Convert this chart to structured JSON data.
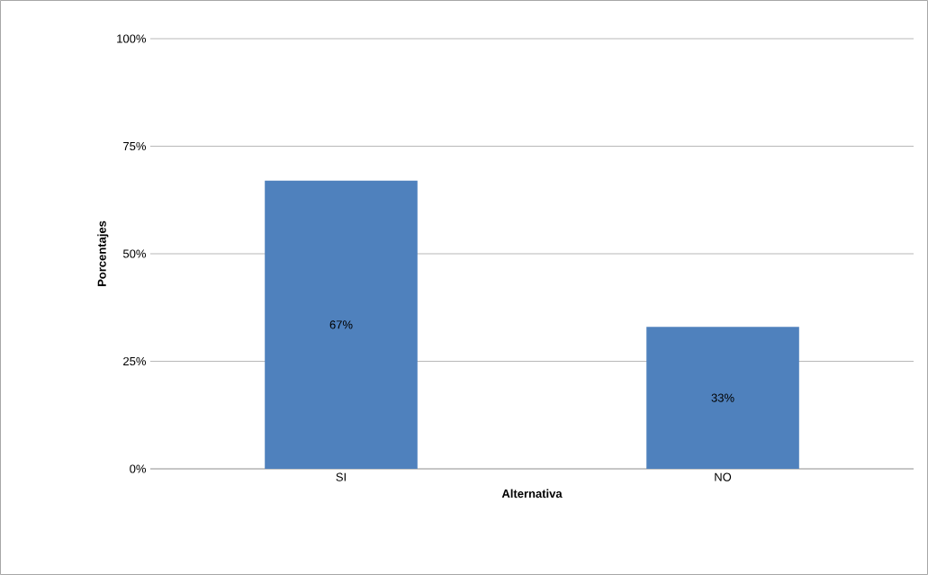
{
  "chart_data": {
    "type": "bar",
    "xlabel": "Alternativa",
    "ylabel": "Porcentajes",
    "categories": [
      "SI",
      "NO"
    ],
    "values": [
      67,
      33
    ],
    "value_labels": [
      "67%",
      "33%"
    ],
    "color": "#4f81bd",
    "ylim": [
      0,
      100
    ],
    "yticks": [
      {
        "value": 0,
        "label": "0%"
      },
      {
        "value": 25,
        "label": "25%"
      },
      {
        "value": 50,
        "label": "50%"
      },
      {
        "value": 75,
        "label": "75%"
      },
      {
        "value": 100,
        "label": "100%"
      }
    ],
    "grid": "y"
  }
}
